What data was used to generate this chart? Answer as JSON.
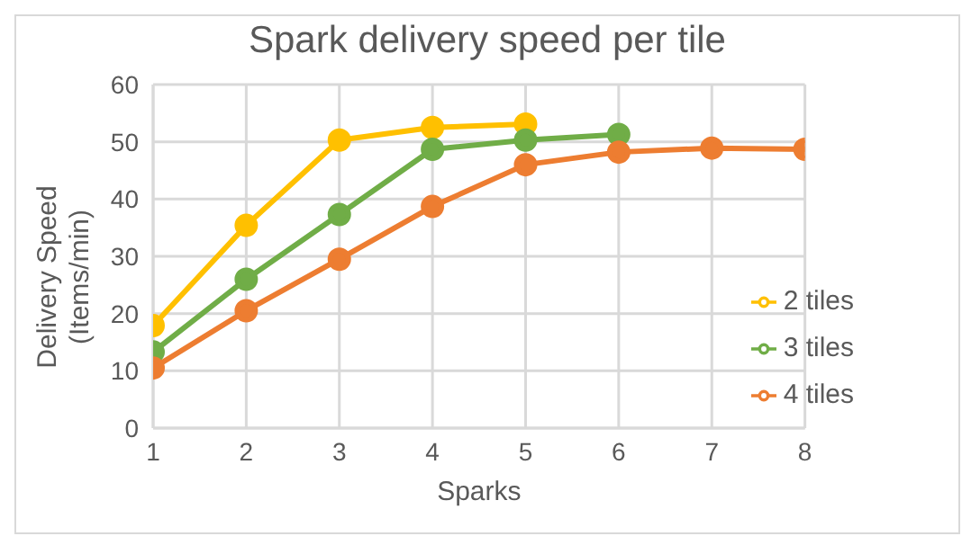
{
  "chart_data": {
    "type": "line",
    "title": "Spark delivery speed per tile",
    "xlabel": "Sparks",
    "ylabel": "Delivery Speed (Items/min)",
    "x": [
      1,
      2,
      3,
      4,
      5,
      6,
      7,
      8
    ],
    "xlim": [
      1,
      8
    ],
    "xticks": [
      1,
      2,
      3,
      4,
      5,
      6,
      7,
      8
    ],
    "ylim": [
      0,
      60
    ],
    "yticks": [
      0,
      10,
      20,
      30,
      40,
      50,
      60
    ],
    "grid": true,
    "legend": "right",
    "marker": "circle",
    "line_style": "solid",
    "series": [
      {
        "name": "2 tiles",
        "color": "#ffc000",
        "values": [
          17.9,
          35.4,
          50.3,
          52.5,
          53.1,
          null,
          null,
          null
        ]
      },
      {
        "name": "3 tiles",
        "color": "#70ad47",
        "values": [
          13.3,
          26,
          37.3,
          48.7,
          50.3,
          51.3,
          null,
          null
        ]
      },
      {
        "name": "4 tiles",
        "color": "#ed7d31",
        "values": [
          10.5,
          20.5,
          29.5,
          38.7,
          46,
          48.2,
          48.9,
          48.7
        ]
      }
    ]
  }
}
